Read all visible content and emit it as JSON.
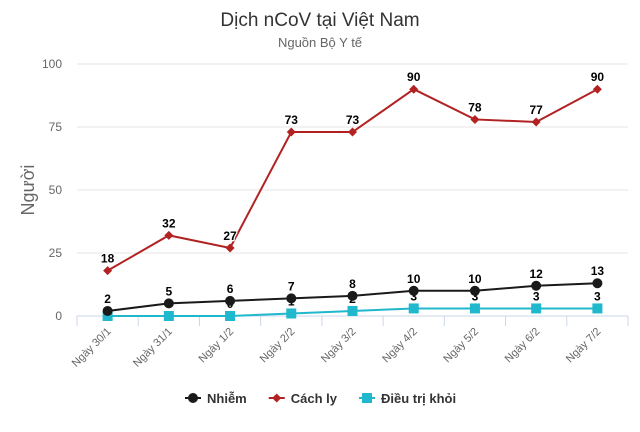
{
  "chart_data": {
    "type": "line",
    "title": "Dịch nCoV tại Việt Nam",
    "subtitle": "Nguồn Bộ Y tế",
    "ylabel": "Người",
    "xlabel": "",
    "ylim": [
      0,
      100
    ],
    "yticks": [
      0,
      25,
      50,
      75,
      100
    ],
    "grid": true,
    "legend_position": "bottom",
    "categories": [
      "Ngày 30/1",
      "Ngày 31/1",
      "Ngày 1/2",
      "Ngày 2/2",
      "Ngày 3/2",
      "Ngày 4/2",
      "Ngày 5/2",
      "Ngày 6/2",
      "Ngày 7/2"
    ],
    "series": [
      {
        "name": "Nhiễm",
        "color": "#1a1a1a",
        "marker": "circle",
        "values": [
          2,
          5,
          6,
          7,
          8,
          10,
          10,
          12,
          13
        ],
        "labels_shown": [
          true,
          true,
          true,
          true,
          true,
          true,
          true,
          true,
          true
        ]
      },
      {
        "name": "Cách ly",
        "color": "#b22222",
        "marker": "diamond",
        "values": [
          18,
          32,
          27,
          73,
          73,
          90,
          78,
          77,
          90
        ],
        "labels_shown": [
          true,
          true,
          true,
          true,
          true,
          true,
          true,
          true,
          true
        ]
      },
      {
        "name": "Điều trị khỏi",
        "color": "#1fb8cc",
        "marker": "square",
        "values": [
          0,
          0,
          0,
          1,
          2,
          3,
          3,
          3,
          3
        ],
        "labels_shown": [
          false,
          false,
          true,
          true,
          true,
          true,
          true,
          true,
          true
        ]
      }
    ]
  }
}
